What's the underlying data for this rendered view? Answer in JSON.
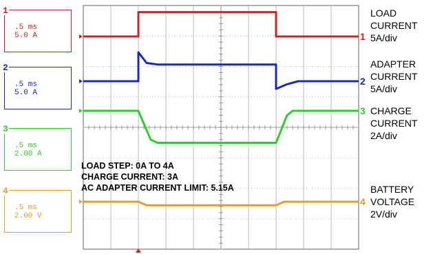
{
  "channels": [
    {
      "number": "1",
      "timebase": ".5 ms",
      "scale": "5.0 A",
      "color": "#d42020"
    },
    {
      "number": "2",
      "timebase": ".5 ms",
      "scale": "5.0 A",
      "color": "#1a28c0"
    },
    {
      "number": "3",
      "timebase": ".5 ms",
      "scale": "2.00 A",
      "color": "#2ecc2e"
    },
    {
      "number": "4",
      "timebase": ".5 ms",
      "scale": "2.00 V",
      "color": "#e0a020"
    }
  ],
  "right_labels": [
    {
      "lines": [
        "LOAD",
        "CURRENT",
        "5A/div"
      ]
    },
    {
      "lines": [
        "ADAPTER",
        "CURRENT",
        "5A/div"
      ]
    },
    {
      "lines": [
        "CHARGE",
        "CURRENT",
        "2A/div"
      ]
    },
    {
      "lines": [
        "BATTERY",
        "VOLTAGE",
        "2V/div"
      ]
    }
  ],
  "notes": [
    "LOAD STEP: 0A TO 4A",
    "CHARGE CURRENT: 3A",
    "AC ADAPTER CURRENT LIMIT: 5.15A"
  ],
  "chart_data": {
    "type": "line",
    "x_divisions": 10,
    "y_divisions": 8,
    "grid": true,
    "series": [
      {
        "channel": "1",
        "color": "#d42020",
        "values_div": [
          [
            0,
            0.0
          ],
          [
            2.0,
            0.0
          ],
          [
            2.0,
            0.8
          ],
          [
            7.0,
            0.8
          ],
          [
            7.0,
            0.0
          ],
          [
            10,
            0.0
          ]
        ]
      },
      {
        "channel": "2",
        "color": "#1a28c0",
        "values_div": [
          [
            0,
            0.0
          ],
          [
            2.0,
            0.0
          ],
          [
            2.0,
            0.95
          ],
          [
            2.3,
            0.6
          ],
          [
            2.7,
            0.55
          ],
          [
            7.0,
            0.55
          ],
          [
            7.0,
            -0.25
          ],
          [
            7.4,
            -0.1
          ],
          [
            7.8,
            0.0
          ],
          [
            10,
            0.0
          ]
        ]
      },
      {
        "channel": "3",
        "color": "#2ecc2e",
        "values_div": [
          [
            0,
            0.0
          ],
          [
            2.0,
            0.0
          ],
          [
            2.45,
            -0.95
          ],
          [
            2.7,
            -1.05
          ],
          [
            7.0,
            -1.05
          ],
          [
            7.4,
            -0.15
          ],
          [
            7.6,
            0.0
          ],
          [
            10,
            0.0
          ]
        ]
      },
      {
        "channel": "4",
        "color": "#e0a020",
        "values_div": [
          [
            0,
            0.0
          ],
          [
            2.0,
            0.0
          ],
          [
            2.3,
            -0.12
          ],
          [
            7.0,
            -0.12
          ],
          [
            7.3,
            0.0
          ],
          [
            10,
            0.0
          ]
        ]
      }
    ]
  }
}
